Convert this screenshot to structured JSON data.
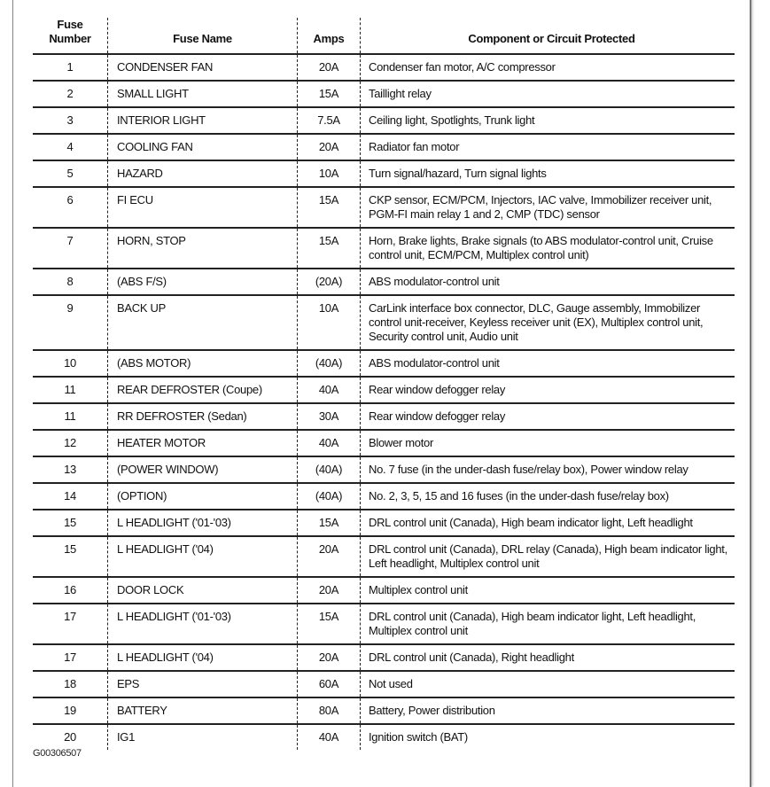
{
  "table": {
    "headers": {
      "number": [
        "Fuse",
        "Number"
      ],
      "name": "Fuse Name",
      "amps": "Amps",
      "component": "Component or Circuit Protected"
    },
    "rows": [
      {
        "number": "1",
        "name": "CONDENSER FAN",
        "amps": "20A",
        "component": "Condenser fan motor, A/C compressor"
      },
      {
        "number": "2",
        "name": "SMALL LIGHT",
        "amps": "15A",
        "component": "Taillight relay"
      },
      {
        "number": "3",
        "name": "INTERIOR LIGHT",
        "amps": "7.5A",
        "component": "Ceiling light, Spotlights, Trunk light"
      },
      {
        "number": "4",
        "name": "COOLING FAN",
        "amps": "20A",
        "component": "Radiator fan motor"
      },
      {
        "number": "5",
        "name": "HAZARD",
        "amps": "10A",
        "component": "Turn signal/hazard, Turn signal lights"
      },
      {
        "number": "6",
        "name": "FI ECU",
        "amps": "15A",
        "component": "CKP sensor, ECM/PCM, Injectors, IAC valve, Immobilizer receiver unit, PGM-FI main relay 1 and 2, CMP (TDC) sensor"
      },
      {
        "number": "7",
        "name": "HORN, STOP",
        "amps": "15A",
        "component": "Horn, Brake lights, Brake signals (to ABS modulator-control unit, Cruise control unit, ECM/PCM, Multiplex control unit)"
      },
      {
        "number": "8",
        "name": "(ABS F/S)",
        "amps": "(20A)",
        "component": "ABS modulator-control unit"
      },
      {
        "number": "9",
        "name": "BACK UP",
        "amps": "10A",
        "component": "CarLink interface box connector, DLC, Gauge assembly, Immobilizer control unit-receiver, Keyless receiver unit (EX), Multiplex control unit, Security control unit, Audio unit"
      },
      {
        "number": "10",
        "name": "(ABS MOTOR)",
        "amps": "(40A)",
        "component": "ABS modulator-control unit"
      },
      {
        "number": "11",
        "name": "REAR DEFROSTER (Coupe)",
        "amps": "40A",
        "component": "Rear window defogger relay"
      },
      {
        "number": "11",
        "name": "RR DEFROSTER (Sedan)",
        "amps": "30A",
        "component": "Rear window defogger relay"
      },
      {
        "number": "12",
        "name": "HEATER MOTOR",
        "amps": "40A",
        "component": "Blower motor"
      },
      {
        "number": "13",
        "name": "(POWER WINDOW)",
        "amps": "(40A)",
        "component": "No. 7 fuse (in the under-dash fuse/relay box), Power window relay"
      },
      {
        "number": "14",
        "name": "(OPTION)",
        "amps": "(40A)",
        "component": "No. 2, 3, 5, 15 and 16 fuses (in the under-dash fuse/relay box)"
      },
      {
        "number": "15",
        "name": "L HEADLIGHT ('01-'03)",
        "amps": "15A",
        "component": "DRL control unit (Canada), High beam indicator light, Left headlight"
      },
      {
        "number": "15",
        "name": "L HEADLIGHT ('04)",
        "amps": "20A",
        "component": "DRL control unit (Canada), DRL relay (Canada), High beam indicator light, Left headlight, Multiplex control unit"
      },
      {
        "number": "16",
        "name": "DOOR LOCK",
        "amps": "20A",
        "component": "Multiplex control unit"
      },
      {
        "number": "17",
        "name": "L HEADLIGHT ('01-'03)",
        "amps": "15A",
        "component": "DRL control unit (Canada), High beam indicator light, Left headlight, Multiplex control unit"
      },
      {
        "number": "17",
        "name": "L HEADLIGHT ('04)",
        "amps": "20A",
        "component": "DRL control unit (Canada), Right headlight"
      },
      {
        "number": "18",
        "name": "EPS",
        "amps": "60A",
        "component": "Not used"
      },
      {
        "number": "19",
        "name": "BATTERY",
        "amps": "80A",
        "component": "Battery, Power distribution"
      },
      {
        "number": "20",
        "name": "IG1",
        "amps": "40A",
        "component": "Ignition switch (BAT)"
      }
    ]
  },
  "footer": {
    "figure_id": "G00306507"
  }
}
